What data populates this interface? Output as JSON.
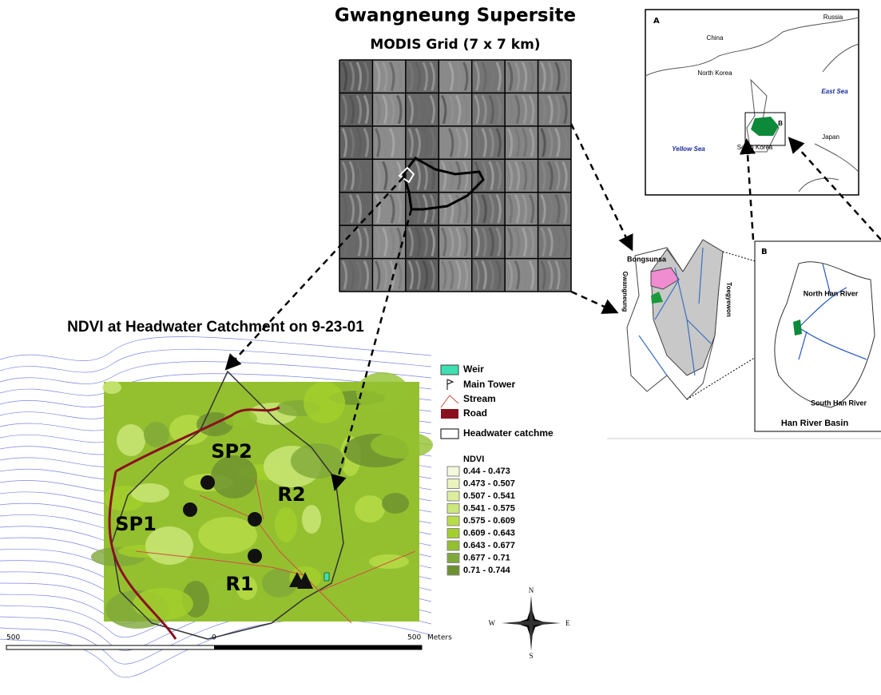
{
  "grid_panel": {
    "title": "Gwangneung Supersite",
    "subtitle": "MODIS Grid (7 x 7 km)"
  },
  "ndvi_map": {
    "title": "NDVI at Headwater Catchment on 9-23-01",
    "sites": [
      "SP2",
      "SP1",
      "R2",
      "R1"
    ],
    "scale": {
      "left": "500",
      "middle": "0",
      "right": "500",
      "unit": "Meters"
    },
    "compass": {
      "north": "N",
      "east": "E",
      "south": "S",
      "west": "W"
    }
  },
  "legend": {
    "items": [
      "Weir",
      "Main Tower",
      "Stream",
      "Road",
      "Headwater catchme"
    ],
    "ndvi_title": "NDVI",
    "classes": [
      {
        "label": "0.44 - 0.473",
        "color": "#f4f8dc"
      },
      {
        "label": "0.473 - 0.507",
        "color": "#eaf4bc"
      },
      {
        "label": "0.507 - 0.541",
        "color": "#dcee9c"
      },
      {
        "label": "0.541 - 0.575",
        "color": "#cce77c"
      },
      {
        "label": "0.575 - 0.609",
        "color": "#b8dd48"
      },
      {
        "label": "0.609 - 0.643",
        "color": "#a4cf2c"
      },
      {
        "label": "0.643 - 0.677",
        "color": "#94c030"
      },
      {
        "label": "0.677 - 0.71",
        "color": "#7fa83a"
      },
      {
        "label": "0.71 - 0.744",
        "color": "#6b9030"
      }
    ]
  },
  "korea_map": {
    "panel": "A",
    "labels": [
      "China",
      "Russia",
      "North Korea",
      "East Sea",
      "B",
      "Yellow Sea",
      "South Korea",
      "Japan"
    ]
  },
  "basin_map": {
    "labels": [
      "Bongsunsa",
      "Gwangneung",
      "Toegyewon"
    ]
  },
  "han_map": {
    "panel": "B",
    "labels": [
      "North Han River",
      "South Han River"
    ],
    "caption": "Han River Basin"
  }
}
